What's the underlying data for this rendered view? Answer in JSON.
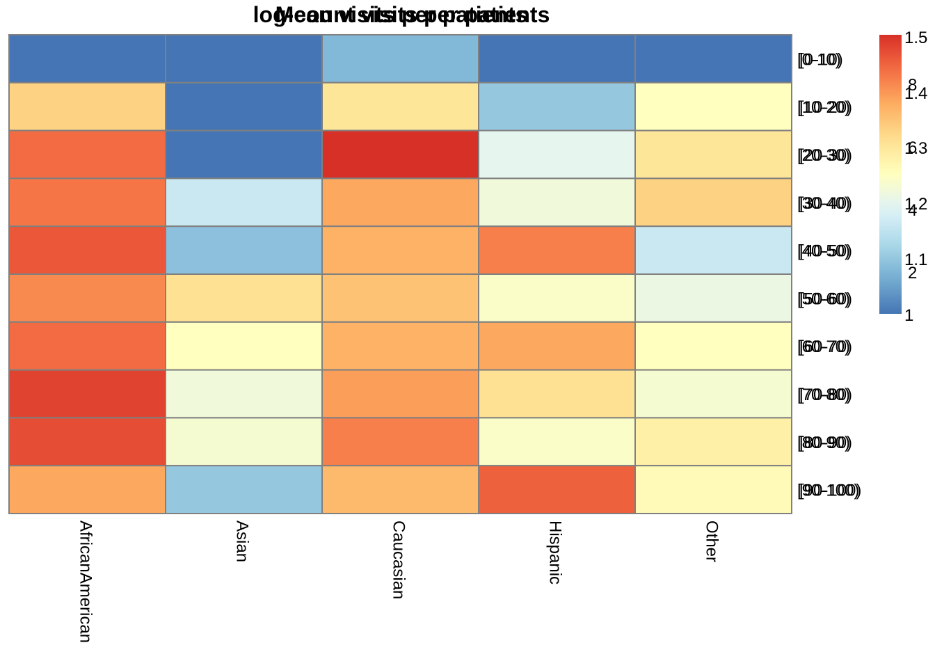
{
  "chart_data": {
    "type": "heatmap",
    "titles": [
      "log-count visits per patients",
      "Mean visits per patients"
    ],
    "columns": [
      "AfricanAmerican",
      "Asian",
      "Caucasian",
      "Hispanic",
      "Other"
    ],
    "rows": [
      "[0-10)",
      "[10-20)",
      "[20-30)",
      "[30-40)",
      "[40-50)",
      "[50-60)",
      "[60-70)",
      "[70-80)",
      "[80-90)",
      "[90-100)"
    ],
    "values": [
      [
        1.0,
        1.0,
        1.08,
        1.0,
        1.0
      ],
      [
        1.33,
        1.0,
        1.3,
        1.1,
        1.25
      ],
      [
        1.44,
        1.0,
        1.5,
        1.2,
        1.3
      ],
      [
        1.43,
        1.16,
        1.38,
        1.22,
        1.33
      ],
      [
        1.46,
        1.09,
        1.37,
        1.42,
        1.16
      ],
      [
        1.41,
        1.31,
        1.35,
        1.24,
        1.21
      ],
      [
        1.44,
        1.25,
        1.37,
        1.38,
        1.25
      ],
      [
        1.48,
        1.22,
        1.39,
        1.31,
        1.23
      ],
      [
        1.47,
        1.23,
        1.42,
        1.24,
        1.28
      ],
      [
        1.38,
        1.1,
        1.36,
        1.45,
        1.26
      ]
    ],
    "colorscale": [
      "#313695",
      "#4575b4",
      "#74add1",
      "#abd9e9",
      "#e0f3f8",
      "#ffffbf",
      "#fee090",
      "#fdae61",
      "#f46d43",
      "#d73027",
      "#a50026"
    ],
    "legend_ticks": [
      "1.5",
      "1.4",
      "1.3",
      "1.2",
      "1.1",
      "1"
    ],
    "legend_ticks_overlay": [
      "8",
      "6",
      "4",
      "2"
    ],
    "legend_placement": "right",
    "grid_color": "#808080"
  }
}
